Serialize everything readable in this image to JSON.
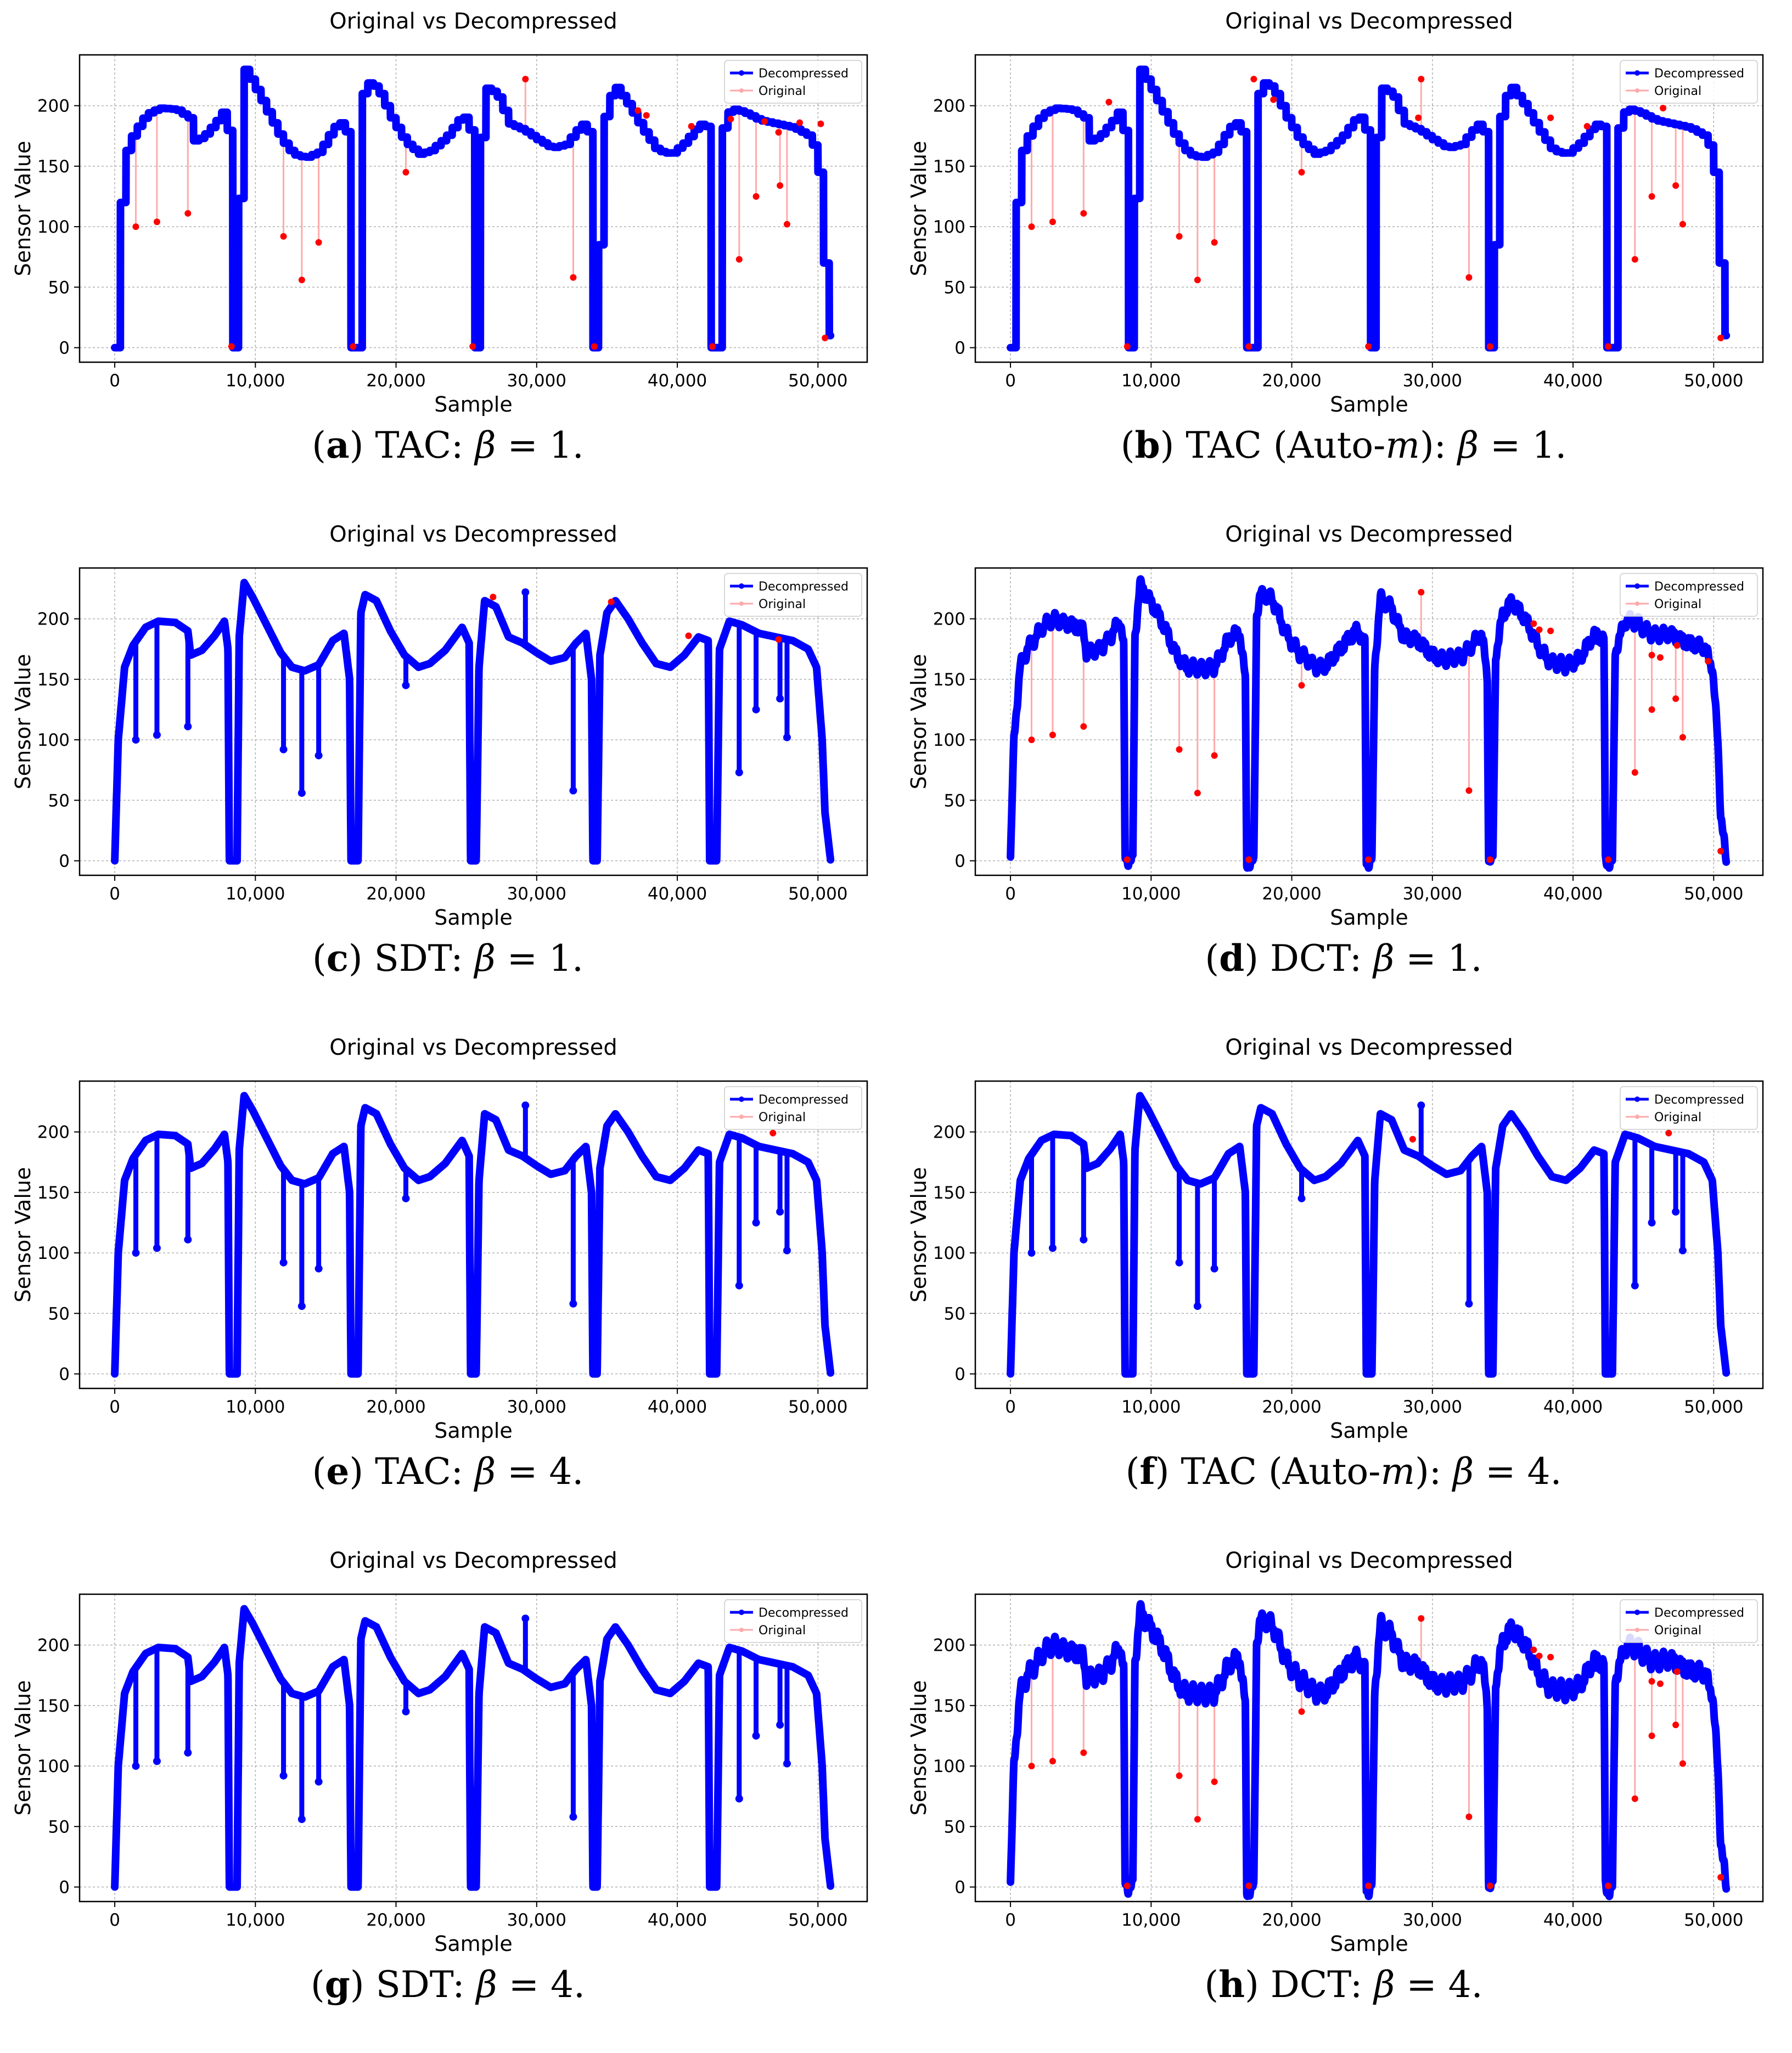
{
  "colors": {
    "decompressed": "#0000ff",
    "original": "#ff0000",
    "original_line": "#ffaaaa",
    "grid": "#b0b0b0"
  },
  "chart_data": [
    {
      "panel": "a",
      "method": "TAC",
      "beta": "1",
      "caption_html": "(<b>a</b>) TAC: <i>β</i> = 1.",
      "type": "line",
      "title": "Original vs Decompressed",
      "xlabel": "Sample",
      "ylabel": "Sensor Value",
      "xlim": [
        -2500,
        53500
      ],
      "ylim": [
        -12,
        242
      ],
      "xticks": [
        0,
        10000,
        20000,
        30000,
        40000,
        50000
      ],
      "xtick_labels": [
        "0",
        "10,000",
        "20,000",
        "30,000",
        "40,000",
        "50,000"
      ],
      "yticks": [
        0,
        50,
        100,
        150,
        200
      ],
      "ytick_labels": [
        "0",
        "50",
        "100",
        "150",
        "200"
      ],
      "legend": [
        "Decompressed",
        "Original"
      ],
      "legend_position": "top-right",
      "style": "step",
      "noise": 0,
      "y_offset": 0,
      "spikes_visible": false,
      "outliers_visible": true,
      "extra_outliers": [
        [
          37200,
          196
        ],
        [
          37800,
          192
        ],
        [
          41000,
          183
        ],
        [
          43800,
          189
        ],
        [
          46200,
          187
        ],
        [
          47200,
          178
        ],
        [
          48700,
          186
        ],
        [
          50200,
          185
        ]
      ]
    },
    {
      "panel": "b",
      "method": "TAC (Auto-m)",
      "beta": "1",
      "caption_html": "(<b>b</b>) TAC (Auto-<i>m</i>): <i>β</i> = 1.",
      "type": "line",
      "title": "Original vs Decompressed",
      "xlabel": "Sample",
      "ylabel": "Sensor Value",
      "xlim": [
        -2500,
        53500
      ],
      "ylim": [
        -12,
        242
      ],
      "xticks": [
        0,
        10000,
        20000,
        30000,
        40000,
        50000
      ],
      "xtick_labels": [
        "0",
        "10,000",
        "20,000",
        "30,000",
        "40,000",
        "50,000"
      ],
      "yticks": [
        0,
        50,
        100,
        150,
        200
      ],
      "ytick_labels": [
        "0",
        "50",
        "100",
        "150",
        "200"
      ],
      "legend": [
        "Decompressed",
        "Original"
      ],
      "legend_position": "top-right",
      "style": "step",
      "noise": 0,
      "y_offset": 0,
      "spikes_visible": false,
      "outliers_visible": true,
      "extra_outliers": [
        [
          7000,
          203
        ],
        [
          17300,
          222
        ],
        [
          18700,
          205
        ],
        [
          29000,
          190
        ],
        [
          38400,
          190
        ],
        [
          41000,
          183
        ],
        [
          46400,
          198
        ]
      ]
    },
    {
      "panel": "c",
      "method": "SDT",
      "beta": "1",
      "caption_html": "(<b>c</b>) SDT: <i>β</i> = 1.",
      "type": "line",
      "title": "Original vs Decompressed",
      "xlabel": "Sample",
      "ylabel": "Sensor Value",
      "xlim": [
        -2500,
        53500
      ],
      "ylim": [
        -12,
        242
      ],
      "xticks": [
        0,
        10000,
        20000,
        30000,
        40000,
        50000
      ],
      "xtick_labels": [
        "0",
        "10,000",
        "20,000",
        "30,000",
        "40,000",
        "50,000"
      ],
      "yticks": [
        0,
        50,
        100,
        150,
        200
      ],
      "ytick_labels": [
        "0",
        "50",
        "100",
        "150",
        "200"
      ],
      "legend": [
        "Decompressed",
        "Original"
      ],
      "legend_position": "top-right",
      "style": "smooth",
      "noise": 0,
      "y_offset": 0,
      "spikes_visible": true,
      "outliers_visible": false,
      "extra_outliers": [
        [
          26900,
          218
        ],
        [
          35300,
          214
        ],
        [
          40800,
          186
        ],
        [
          47200,
          183
        ]
      ]
    },
    {
      "panel": "d",
      "method": "DCT",
      "beta": "1",
      "caption_html": "(<b>d</b>) DCT: <i>β</i> = 1.",
      "type": "line",
      "title": "Original vs Decompressed",
      "xlabel": "Sample",
      "ylabel": "Sensor Value",
      "xlim": [
        -2500,
        53500
      ],
      "ylim": [
        -12,
        242
      ],
      "xticks": [
        0,
        10000,
        20000,
        30000,
        40000,
        50000
      ],
      "xtick_labels": [
        "0",
        "10,000",
        "20,000",
        "30,000",
        "40,000",
        "50,000"
      ],
      "yticks": [
        0,
        50,
        100,
        150,
        200
      ],
      "ytick_labels": [
        "0",
        "50",
        "100",
        "150",
        "200"
      ],
      "legend": [
        "Decompressed",
        "Original"
      ],
      "legend_position": "top-right",
      "style": "noisy",
      "noise": 7,
      "y_offset": 0,
      "spikes_visible": false,
      "outliers_visible": true,
      "extra_outliers": [
        [
          37200,
          196
        ],
        [
          37600,
          191
        ],
        [
          38400,
          190
        ],
        [
          45600,
          170
        ],
        [
          46200,
          168
        ],
        [
          47400,
          178
        ],
        [
          49600,
          165
        ]
      ]
    },
    {
      "panel": "e",
      "method": "TAC",
      "beta": "4",
      "caption_html": "(<b>e</b>) TAC: <i>β</i> = 4.",
      "type": "line",
      "title": "Original vs Decompressed",
      "xlabel": "Sample",
      "ylabel": "Sensor Value",
      "xlim": [
        -2500,
        53500
      ],
      "ylim": [
        -12,
        242
      ],
      "xticks": [
        0,
        10000,
        20000,
        30000,
        40000,
        50000
      ],
      "xtick_labels": [
        "0",
        "10,000",
        "20,000",
        "30,000",
        "40,000",
        "50,000"
      ],
      "yticks": [
        0,
        50,
        100,
        150,
        200
      ],
      "ytick_labels": [
        "0",
        "50",
        "100",
        "150",
        "200"
      ],
      "legend": [
        "Decompressed",
        "Original"
      ],
      "legend_position": "top-right",
      "style": "smooth",
      "noise": 0,
      "y_offset": 0,
      "spikes_visible": true,
      "outliers_visible": false,
      "extra_outliers": [
        [
          46800,
          199
        ]
      ]
    },
    {
      "panel": "f",
      "method": "TAC (Auto-m)",
      "beta": "4",
      "caption_html": "(<b>f</b>) TAC (Auto-<i>m</i>): <i>β</i> = 4.",
      "type": "line",
      "title": "Original vs Decompressed",
      "xlabel": "Sample",
      "ylabel": "Sensor Value",
      "xlim": [
        -2500,
        53500
      ],
      "ylim": [
        -12,
        242
      ],
      "xticks": [
        0,
        10000,
        20000,
        30000,
        40000,
        50000
      ],
      "xtick_labels": [
        "0",
        "10,000",
        "20,000",
        "30,000",
        "40,000",
        "50,000"
      ],
      "yticks": [
        0,
        50,
        100,
        150,
        200
      ],
      "ytick_labels": [
        "0",
        "50",
        "100",
        "150",
        "200"
      ],
      "legend": [
        "Decompressed",
        "Original"
      ],
      "legend_position": "top-right",
      "style": "smooth",
      "noise": 0,
      "y_offset": 0,
      "spikes_visible": true,
      "outliers_visible": false,
      "extra_outliers": [
        [
          28600,
          194
        ],
        [
          46800,
          199
        ]
      ]
    },
    {
      "panel": "g",
      "method": "SDT",
      "beta": "4",
      "caption_html": "(<b>g</b>) SDT: <i>β</i> = 4.",
      "type": "line",
      "title": "Original vs Decompressed",
      "xlabel": "Sample",
      "ylabel": "Sensor Value",
      "xlim": [
        -2500,
        53500
      ],
      "ylim": [
        -12,
        242
      ],
      "xticks": [
        0,
        10000,
        20000,
        30000,
        40000,
        50000
      ],
      "xtick_labels": [
        "0",
        "10,000",
        "20,000",
        "30,000",
        "40,000",
        "50,000"
      ],
      "yticks": [
        0,
        50,
        100,
        150,
        200
      ],
      "ytick_labels": [
        "0",
        "50",
        "100",
        "150",
        "200"
      ],
      "legend": [
        "Decompressed",
        "Original"
      ],
      "legend_position": "top-right",
      "style": "smooth",
      "noise": 0,
      "y_offset": 0,
      "spikes_visible": true,
      "outliers_visible": false,
      "extra_outliers": []
    },
    {
      "panel": "h",
      "method": "DCT",
      "beta": "4",
      "caption_html": "(<b>h</b>) DCT: <i>β</i> = 4.",
      "type": "line",
      "title": "Original vs Decompressed",
      "xlabel": "Sample",
      "ylabel": "Sensor Value",
      "xlim": [
        -2500,
        53500
      ],
      "ylim": [
        -12,
        242
      ],
      "xticks": [
        0,
        10000,
        20000,
        30000,
        40000,
        50000
      ],
      "xtick_labels": [
        "0",
        "10,000",
        "20,000",
        "30,000",
        "40,000",
        "50,000"
      ],
      "yticks": [
        0,
        50,
        100,
        150,
        200
      ],
      "ytick_labels": [
        "0",
        "50",
        "100",
        "150",
        "200"
      ],
      "legend": [
        "Decompressed",
        "Original"
      ],
      "legend_position": "top-right",
      "style": "noisy",
      "noise": 9,
      "y_offset": 0,
      "spikes_visible": false,
      "outliers_visible": true,
      "extra_outliers": [
        [
          37200,
          196
        ],
        [
          37600,
          191
        ],
        [
          38400,
          190
        ],
        [
          45600,
          170
        ],
        [
          46200,
          168
        ],
        [
          47400,
          178
        ]
      ]
    }
  ],
  "signal": {
    "baseline": [
      [
        0,
        0
      ],
      [
        250,
        100
      ],
      [
        700,
        160
      ],
      [
        1300,
        178
      ],
      [
        2200,
        193
      ],
      [
        3100,
        198
      ],
      [
        4300,
        197
      ],
      [
        5200,
        190
      ],
      [
        5400,
        170
      ],
      [
        6200,
        174
      ],
      [
        7100,
        186
      ],
      [
        7800,
        198
      ],
      [
        8050,
        175
      ],
      [
        8150,
        0
      ],
      [
        8700,
        0
      ],
      [
        8850,
        185
      ],
      [
        9200,
        230
      ],
      [
        9800,
        218
      ],
      [
        10800,
        195
      ],
      [
        11800,
        172
      ],
      [
        12600,
        160
      ],
      [
        13500,
        157
      ],
      [
        14500,
        162
      ],
      [
        15500,
        182
      ],
      [
        16300,
        188
      ],
      [
        16700,
        150
      ],
      [
        16800,
        0
      ],
      [
        17300,
        0
      ],
      [
        17500,
        205
      ],
      [
        17800,
        220
      ],
      [
        18600,
        215
      ],
      [
        19600,
        190
      ],
      [
        20600,
        170
      ],
      [
        21600,
        160
      ],
      [
        22400,
        163
      ],
      [
        23500,
        174
      ],
      [
        24700,
        193
      ],
      [
        25200,
        180
      ],
      [
        25300,
        0
      ],
      [
        25700,
        0
      ],
      [
        25900,
        160
      ],
      [
        26300,
        215
      ],
      [
        27100,
        210
      ],
      [
        28000,
        185
      ],
      [
        29000,
        180
      ],
      [
        30000,
        172
      ],
      [
        31000,
        165
      ],
      [
        32000,
        168
      ],
      [
        32800,
        180
      ],
      [
        33500,
        188
      ],
      [
        33900,
        150
      ],
      [
        34000,
        0
      ],
      [
        34300,
        0
      ],
      [
        34500,
        170
      ],
      [
        35000,
        205
      ],
      [
        35600,
        215
      ],
      [
        36500,
        200
      ],
      [
        37500,
        180
      ],
      [
        38500,
        163
      ],
      [
        39500,
        160
      ],
      [
        40500,
        170
      ],
      [
        41500,
        185
      ],
      [
        42200,
        182
      ],
      [
        42300,
        0
      ],
      [
        42800,
        0
      ],
      [
        43000,
        175
      ],
      [
        43700,
        198
      ],
      [
        44600,
        195
      ],
      [
        45800,
        188
      ],
      [
        47000,
        185
      ],
      [
        48200,
        182
      ],
      [
        49300,
        175
      ],
      [
        49900,
        160
      ],
      [
        50300,
        100
      ],
      [
        50500,
        40
      ],
      [
        50900,
        0
      ]
    ],
    "spikes": [
      [
        1500,
        100
      ],
      [
        3000,
        104
      ],
      [
        5200,
        111
      ],
      [
        12000,
        92
      ],
      [
        13300,
        56
      ],
      [
        14500,
        87
      ],
      [
        20700,
        145
      ],
      [
        29200,
        222
      ],
      [
        32600,
        58
      ],
      [
        44400,
        73
      ],
      [
        45600,
        125
      ],
      [
        47300,
        134
      ],
      [
        47800,
        102
      ]
    ]
  }
}
